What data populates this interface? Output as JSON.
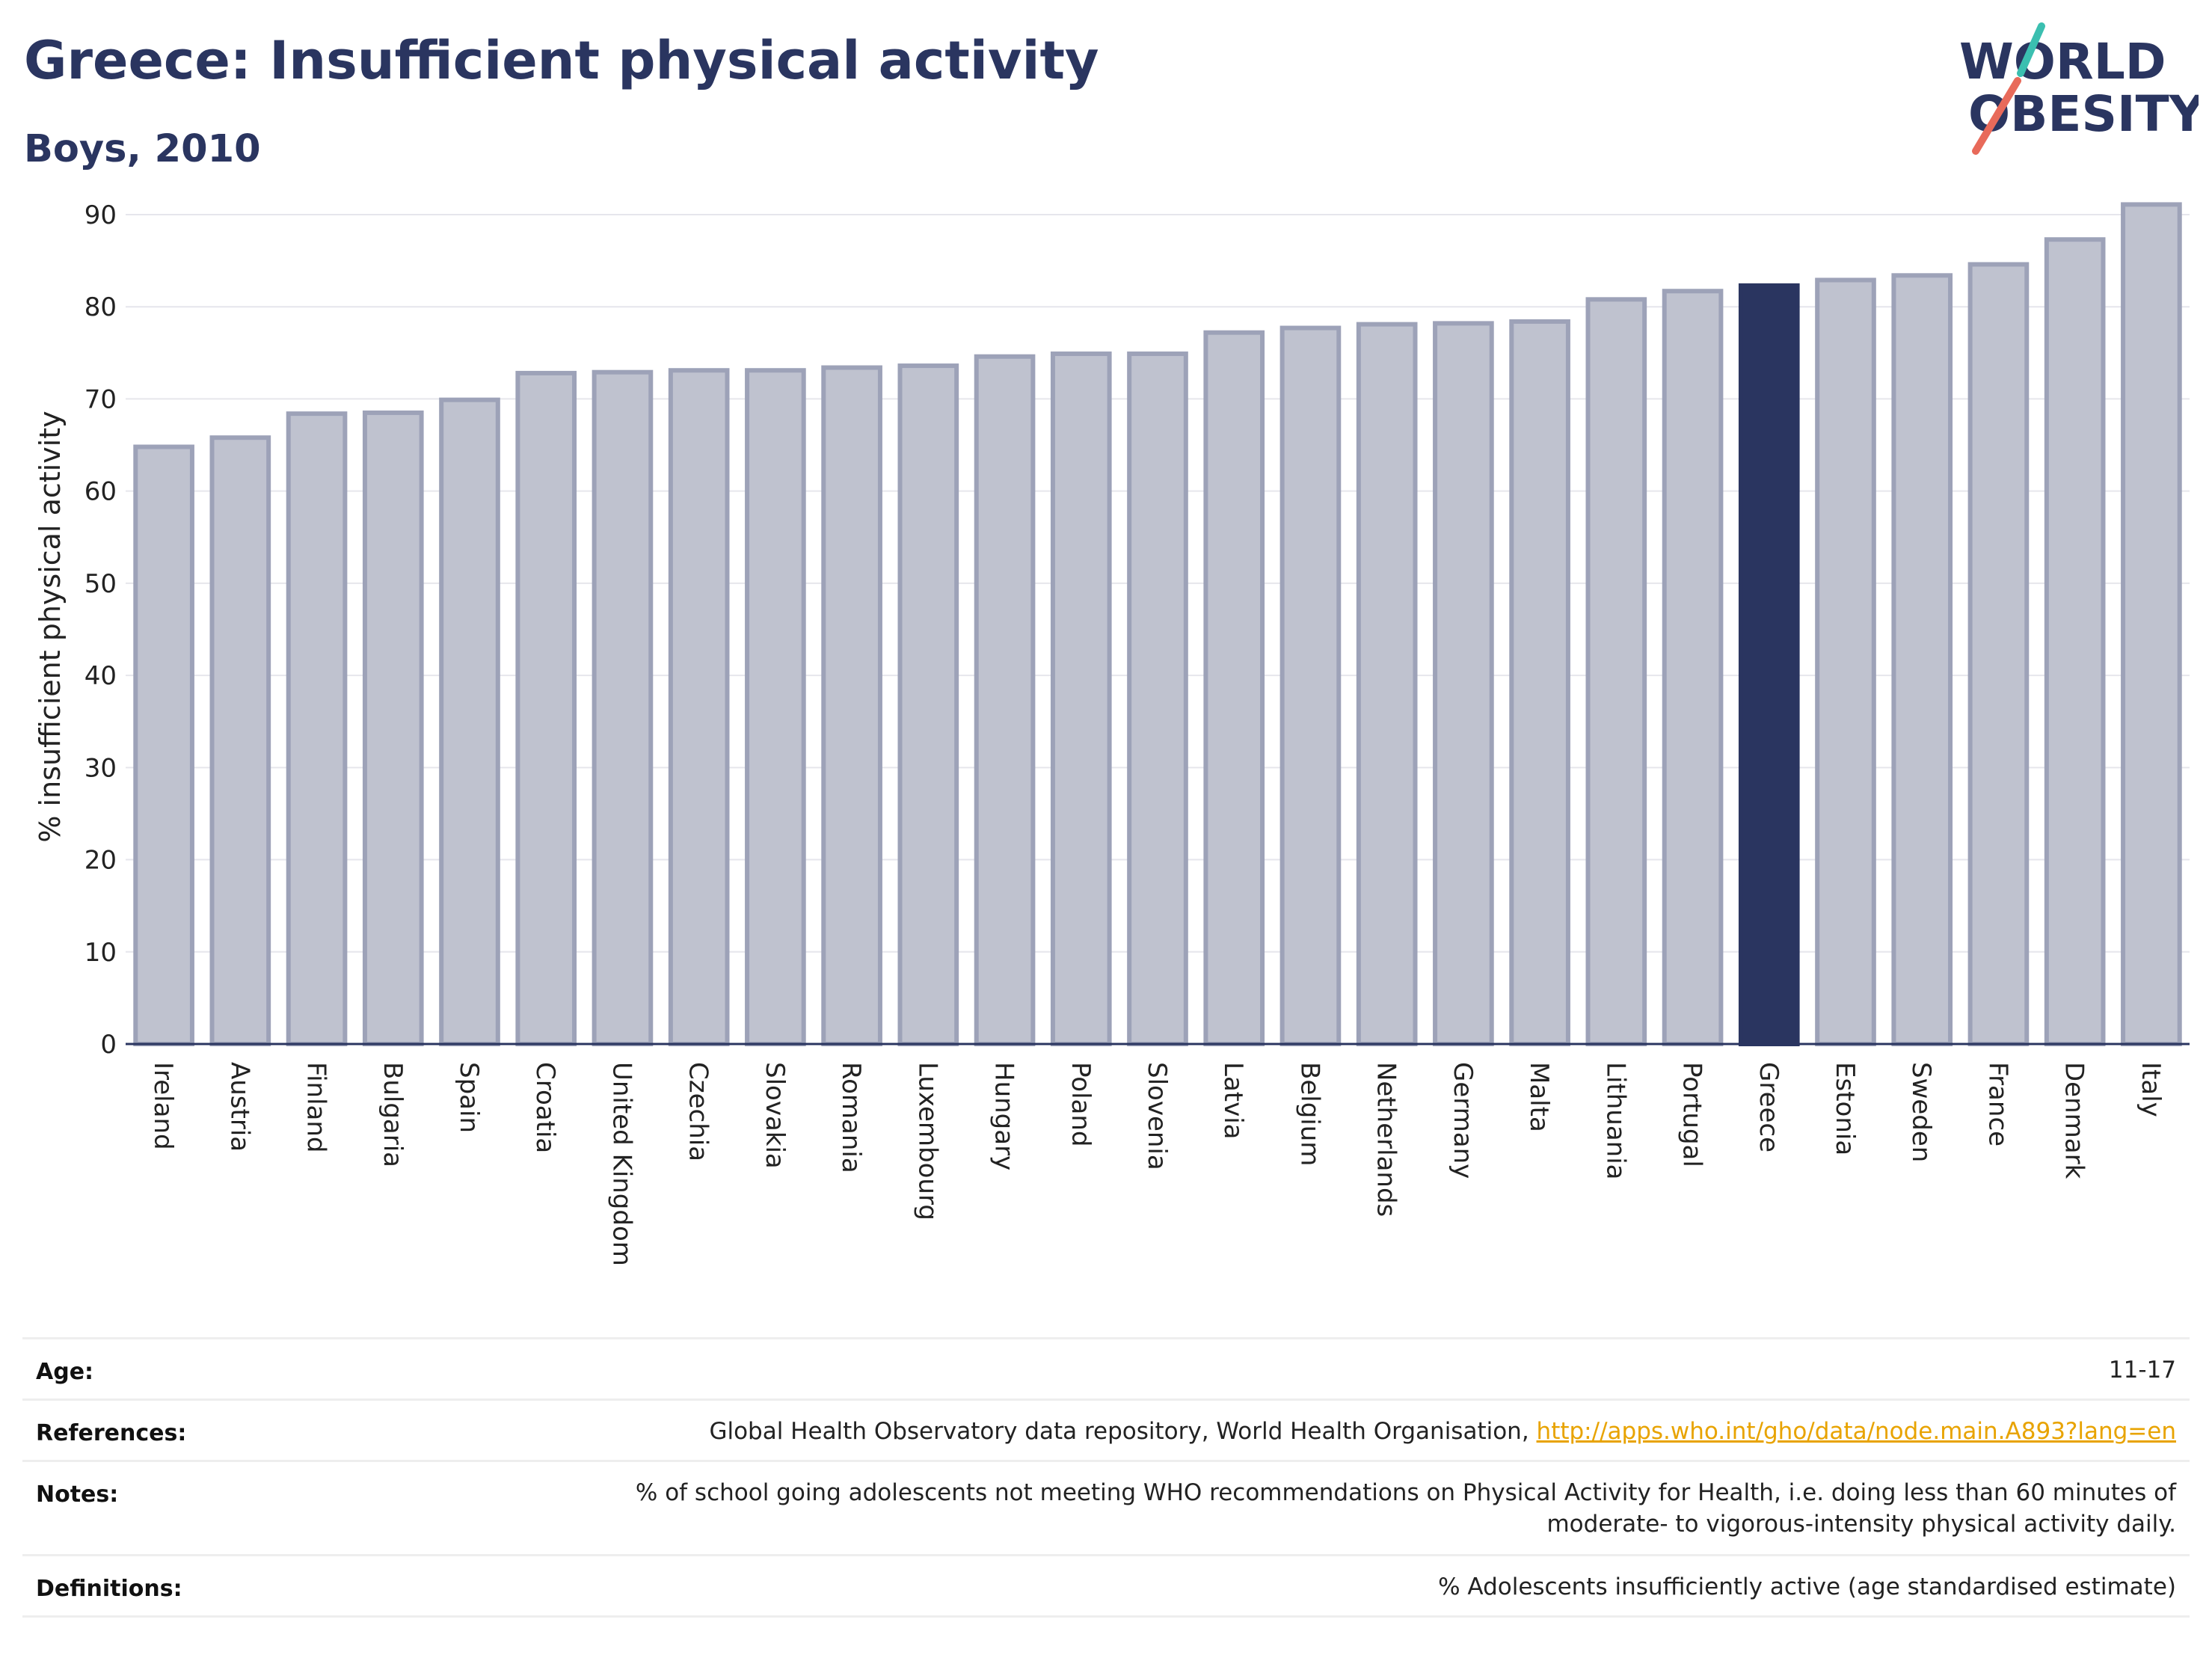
{
  "header": {
    "title": "Greece: Insufficient physical activity",
    "subtitle": "Boys, 2010"
  },
  "logo": {
    "line1": "WORLD",
    "line2": "OBESITY"
  },
  "colors": {
    "highlight": "#2a3560",
    "bar_fill": "#bfc2cf",
    "bar_stroke": "#9da2b8",
    "link": "#e8a300",
    "logo_teal": "#3bbfb0",
    "logo_coral": "#e86a5a"
  },
  "chart_data": {
    "type": "bar",
    "ylabel": "% insufficient physical activity",
    "ylim": [
      0,
      93
    ],
    "yticks": [
      0,
      10,
      20,
      30,
      40,
      50,
      60,
      70,
      80,
      90
    ],
    "grid": true,
    "highlight": "Greece",
    "categories": [
      "Ireland",
      "Austria",
      "Finland",
      "Bulgaria",
      "Spain",
      "Croatia",
      "United Kingdom",
      "Czechia",
      "Slovakia",
      "Romania",
      "Luxembourg",
      "Hungary",
      "Poland",
      "Slovenia",
      "Latvia",
      "Belgium",
      "Netherlands",
      "Germany",
      "Malta",
      "Lithuania",
      "Portugal",
      "Greece",
      "Estonia",
      "Sweden",
      "France",
      "Denmark",
      "Italy"
    ],
    "values": [
      64.8,
      65.8,
      68.4,
      68.5,
      69.9,
      72.8,
      72.9,
      73.1,
      73.1,
      73.4,
      73.6,
      74.6,
      74.9,
      74.9,
      77.2,
      77.7,
      78.1,
      78.2,
      78.4,
      80.8,
      81.7,
      82.3,
      82.9,
      83.4,
      84.6,
      87.3,
      91.1
    ]
  },
  "meta": {
    "age_label": "Age:",
    "age_value": "11-17",
    "references_label": "References:",
    "references_text": "Global Health Observatory data repository, World Health Organisation, ",
    "references_link": "http://apps.who.int/gho/data/node.main.A893?lang=en",
    "notes_label": "Notes:",
    "notes_line1": "% of school going adolescents not meeting WHO recommendations on Physical Activity for Health, i.e. doing less than 60 minutes of",
    "notes_line2": "moderate- to vigorous-intensity physical activity daily.",
    "definitions_label": "Definitions:",
    "definitions_value": "% Adolescents insufficiently active (age standardised estimate)"
  }
}
